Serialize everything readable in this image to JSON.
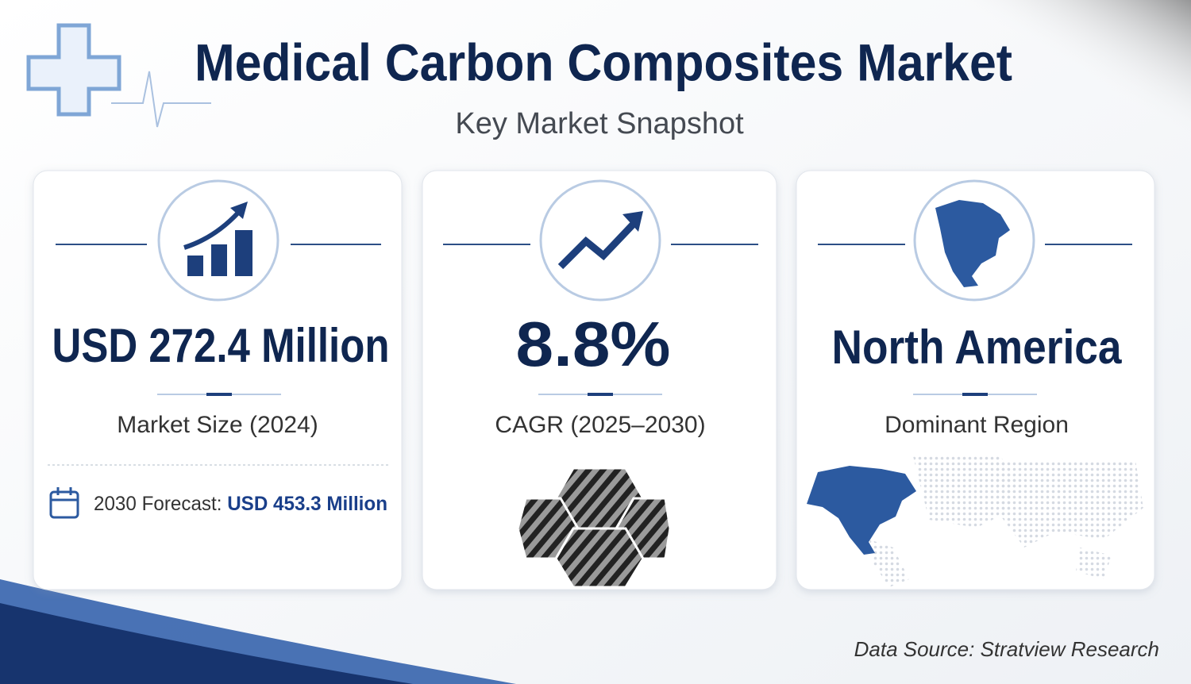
{
  "header": {
    "title": "Medical Carbon Composites Market",
    "subtitle": "Key Market Snapshot"
  },
  "cards": [
    {
      "value": "USD 272.4 Million",
      "label": "Market Size (2024)",
      "forecast_label": "2030 Forecast:",
      "forecast_value": "USD 453.3 Million"
    },
    {
      "value": "8.8%",
      "label": "CAGR (2025–2030)"
    },
    {
      "value": "North America",
      "label": "Dominant Region"
    }
  ],
  "source": "Data Source: Stratview Research"
}
